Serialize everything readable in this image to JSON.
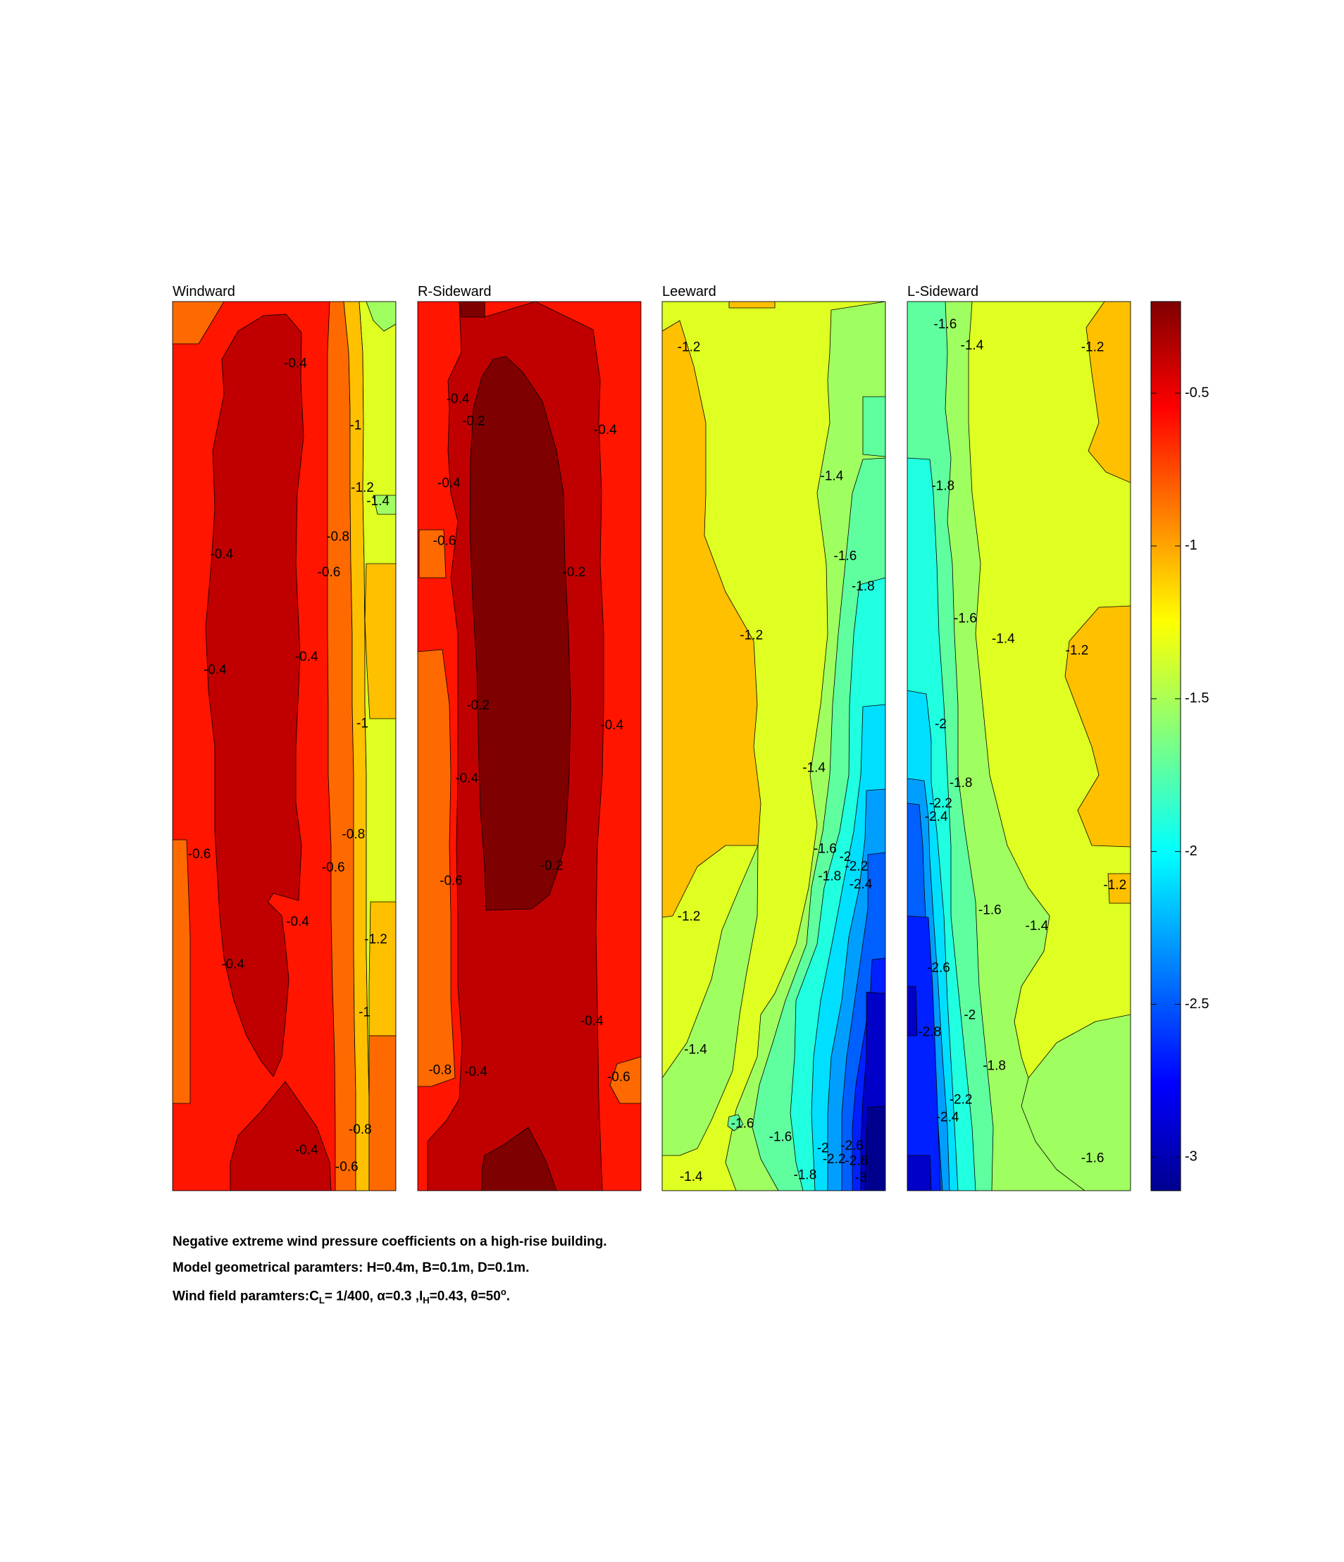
{
  "colors": {
    "c1": "#7f0000",
    "c2": "#c00000",
    "c3": "#ff1500",
    "c4": "#ff6a00",
    "c5": "#ffc000",
    "c6": "#deff21",
    "c7": "#a0ff60",
    "c8": "#5fffa0",
    "c9": "#20ffe0",
    "c10": "#00dfff",
    "c11": "#009fff",
    "c12": "#0060ff",
    "c13": "#0020ff",
    "c14": "#0000c8",
    "c15": "#00008f"
  },
  "chart_data": {
    "type": "heatmap",
    "panels": [
      {
        "title": "Windward",
        "contour_labels": [
          {
            "text": "-0.4",
            "x": 0.55,
            "y": 0.07
          },
          {
            "text": "-1",
            "x": 0.82,
            "y": 0.14
          },
          {
            "text": "-1.2",
            "x": 0.85,
            "y": 0.21
          },
          {
            "text": "-1.4",
            "x": 0.92,
            "y": 0.225
          },
          {
            "text": "-0.8",
            "x": 0.74,
            "y": 0.265
          },
          {
            "text": "-0.4",
            "x": 0.22,
            "y": 0.285
          },
          {
            "text": "-0.6",
            "x": 0.7,
            "y": 0.305
          },
          {
            "text": "-0.4",
            "x": 0.6,
            "y": 0.4
          },
          {
            "text": "-0.4",
            "x": 0.19,
            "y": 0.415
          },
          {
            "text": "-1",
            "x": 0.85,
            "y": 0.475
          },
          {
            "text": "-0.8",
            "x": 0.81,
            "y": 0.6
          },
          {
            "text": "-0.6",
            "x": 0.12,
            "y": 0.622
          },
          {
            "text": "-0.6",
            "x": 0.72,
            "y": 0.637
          },
          {
            "text": "-0.4",
            "x": 0.56,
            "y": 0.698
          },
          {
            "text": "-1.2",
            "x": 0.91,
            "y": 0.718
          },
          {
            "text": "-0.4",
            "x": 0.27,
            "y": 0.746
          },
          {
            "text": "-1",
            "x": 0.86,
            "y": 0.8
          },
          {
            "text": "-0.8",
            "x": 0.84,
            "y": 0.932
          },
          {
            "text": "-0.4",
            "x": 0.6,
            "y": 0.955
          },
          {
            "text": "-0.6",
            "x": 0.78,
            "y": 0.974
          }
        ]
      },
      {
        "title": "R-Sideward",
        "contour_labels": [
          {
            "text": "-0.4",
            "x": 0.18,
            "y": 0.11
          },
          {
            "text": "-0.2",
            "x": 0.25,
            "y": 0.135
          },
          {
            "text": "-0.4",
            "x": 0.84,
            "y": 0.145
          },
          {
            "text": "-0.4",
            "x": 0.14,
            "y": 0.205
          },
          {
            "text": "-0.6",
            "x": 0.12,
            "y": 0.27
          },
          {
            "text": "-0.2",
            "x": 0.7,
            "y": 0.305
          },
          {
            "text": "-0.2",
            "x": 0.27,
            "y": 0.455
          },
          {
            "text": "-0.4",
            "x": 0.87,
            "y": 0.477
          },
          {
            "text": "-0.4",
            "x": 0.22,
            "y": 0.537
          },
          {
            "text": "-0.2",
            "x": 0.6,
            "y": 0.635
          },
          {
            "text": "-0.6",
            "x": 0.15,
            "y": 0.652
          },
          {
            "text": "-0.4",
            "x": 0.78,
            "y": 0.81
          },
          {
            "text": "-0.8",
            "x": 0.1,
            "y": 0.865
          },
          {
            "text": "-0.4",
            "x": 0.26,
            "y": 0.867
          },
          {
            "text": "-0.6",
            "x": 0.9,
            "y": 0.873
          }
        ]
      },
      {
        "title": "Leeward",
        "contour_labels": [
          {
            "text": "-1.2",
            "x": 0.12,
            "y": 0.052
          },
          {
            "text": "-1.4",
            "x": 0.76,
            "y": 0.197
          },
          {
            "text": "-1.6",
            "x": 0.82,
            "y": 0.287
          },
          {
            "text": "-1.8",
            "x": 0.9,
            "y": 0.321
          },
          {
            "text": "-1.2",
            "x": 0.4,
            "y": 0.376
          },
          {
            "text": "-1.4",
            "x": 0.68,
            "y": 0.525
          },
          {
            "text": "-1.6",
            "x": 0.73,
            "y": 0.616
          },
          {
            "text": "-2",
            "x": 0.82,
            "y": 0.625
          },
          {
            "text": "-2.2",
            "x": 0.87,
            "y": 0.636
          },
          {
            "text": "-1.8",
            "x": 0.75,
            "y": 0.647
          },
          {
            "text": "-2.4",
            "x": 0.89,
            "y": 0.656
          },
          {
            "text": "-1.2",
            "x": 0.12,
            "y": 0.692
          },
          {
            "text": "-1.4",
            "x": 0.15,
            "y": 0.842
          },
          {
            "text": "-1.6",
            "x": 0.36,
            "y": 0.925
          },
          {
            "text": "-1.6",
            "x": 0.53,
            "y": 0.94
          },
          {
            "text": "-2",
            "x": 0.72,
            "y": 0.953
          },
          {
            "text": "-2.6",
            "x": 0.85,
            "y": 0.95
          },
          {
            "text": "-2.2",
            "x": 0.77,
            "y": 0.965
          },
          {
            "text": "-2.8",
            "x": 0.87,
            "y": 0.967
          },
          {
            "text": "-1.4",
            "x": 0.13,
            "y": 0.985
          },
          {
            "text": "-1.8",
            "x": 0.64,
            "y": 0.983
          },
          {
            "text": "-3",
            "x": 0.89,
            "y": 0.986
          }
        ]
      },
      {
        "title": "L-Sideward",
        "contour_labels": [
          {
            "text": "-1.6",
            "x": 0.17,
            "y": 0.026
          },
          {
            "text": "-1.4",
            "x": 0.29,
            "y": 0.05
          },
          {
            "text": "-1.2",
            "x": 0.83,
            "y": 0.052
          },
          {
            "text": "-1.8",
            "x": 0.16,
            "y": 0.208
          },
          {
            "text": "-1.6",
            "x": 0.26,
            "y": 0.357
          },
          {
            "text": "-1.4",
            "x": 0.43,
            "y": 0.38
          },
          {
            "text": "-1.2",
            "x": 0.76,
            "y": 0.393
          },
          {
            "text": "-2",
            "x": 0.15,
            "y": 0.476
          },
          {
            "text": "-1.8",
            "x": 0.24,
            "y": 0.542
          },
          {
            "text": "-2.2",
            "x": 0.15,
            "y": 0.565
          },
          {
            "text": "-2.4",
            "x": 0.13,
            "y": 0.58
          },
          {
            "text": "-1.2",
            "x": 0.93,
            "y": 0.657
          },
          {
            "text": "-1.6",
            "x": 0.37,
            "y": 0.685
          },
          {
            "text": "-1.4",
            "x": 0.58,
            "y": 0.703
          },
          {
            "text": "-2.6",
            "x": 0.14,
            "y": 0.75
          },
          {
            "text": "-2",
            "x": 0.28,
            "y": 0.803
          },
          {
            "text": "-2.8",
            "x": 0.1,
            "y": 0.822
          },
          {
            "text": "-1.8",
            "x": 0.39,
            "y": 0.86
          },
          {
            "text": "-2.2",
            "x": 0.24,
            "y": 0.898
          },
          {
            "text": "-2.4",
            "x": 0.18,
            "y": 0.918
          },
          {
            "text": "-1.6",
            "x": 0.83,
            "y": 0.964
          }
        ]
      }
    ],
    "colorbar": {
      "ticks": [
        "-0.5",
        "-1",
        "-1.5",
        "-2",
        "-2.5",
        "-3"
      ],
      "tick_values": [
        -0.5,
        -1,
        -1.5,
        -2,
        -2.5,
        -3
      ],
      "range": [
        -3.11,
        -0.2
      ],
      "colormap": "jet"
    },
    "caption": {
      "line1": "Negative extreme wind pressure coefficients on a high-rise building.",
      "line2": "Model geometrical paramters: H=0.4m, B=0.1m, D=0.1m.",
      "line3_a": "Wind field paramters:C",
      "line3_sub1": "L",
      "line3_b": "= 1/400, α=0.3 ,I",
      "line3_sub2": "H",
      "line3_c": "=0.43, θ=50",
      "line3_sup": "o",
      "line3_d": "."
    }
  }
}
